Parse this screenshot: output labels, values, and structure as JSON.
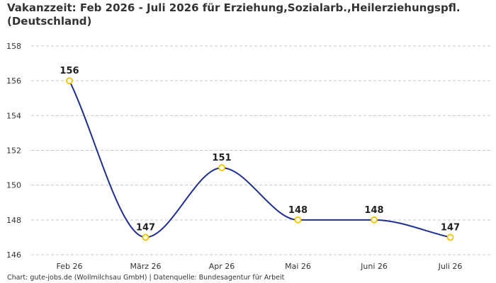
{
  "chart_data": {
    "type": "line",
    "title": "Vakanzzeit: Feb 2026 - Juli 2026 für Erziehung,Sozialarb.,Heilerziehungspfl. (Deutschland)",
    "xlabel": "",
    "ylabel": "",
    "categories": [
      "Feb 26",
      "März 26",
      "Apr 26",
      "Mai 26",
      "Juni 26",
      "Juli 26"
    ],
    "series": [
      {
        "values": [
          156,
          147,
          151,
          148,
          148,
          147
        ]
      }
    ],
    "yticks": [
      146,
      148,
      150,
      152,
      154,
      156,
      158
    ],
    "ylim": [
      146,
      158
    ],
    "grid": true,
    "line_color": "#1f2f8f",
    "marker_color": "#f2c200"
  },
  "footer": "Chart: gute-jobs.de (Wollmilchsau GmbH) | Datenquelle: Bundesagentur für Arbeit"
}
